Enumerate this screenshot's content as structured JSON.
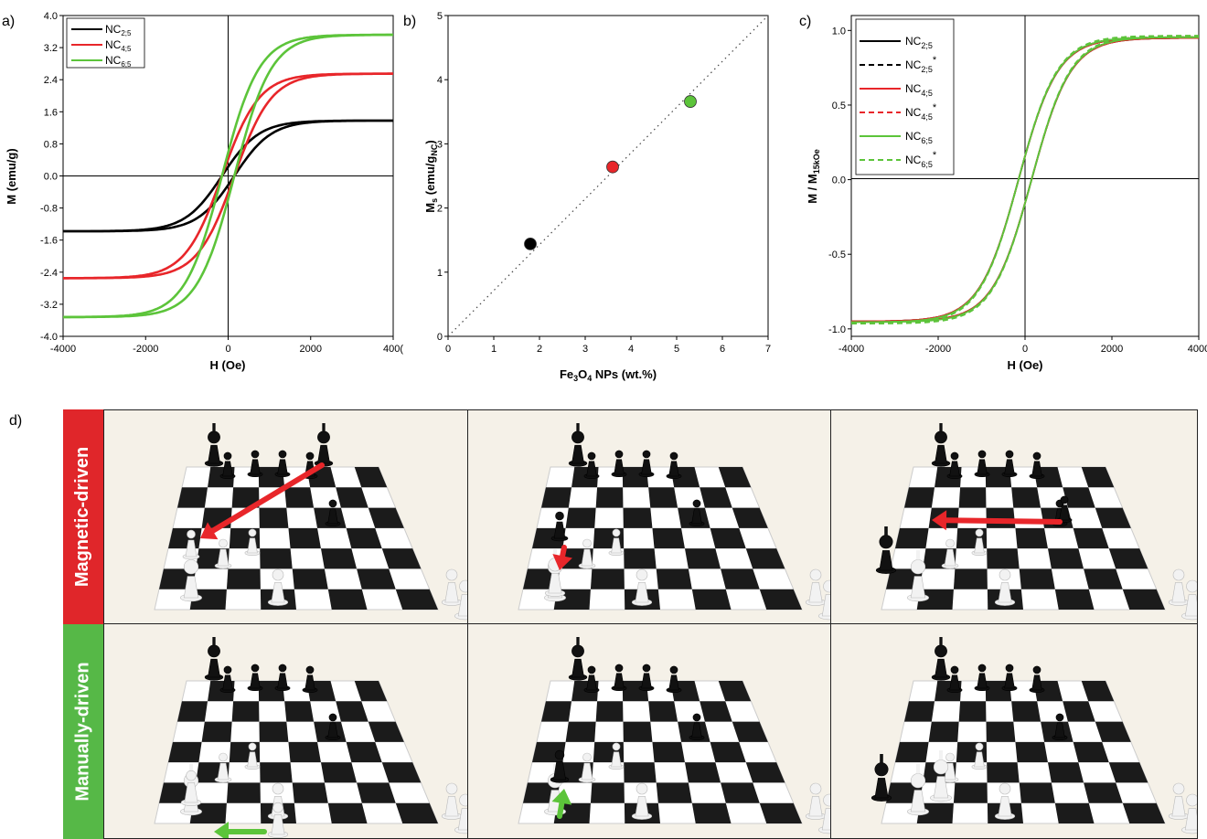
{
  "chart_data": [
    {
      "panel": "a)",
      "type": "line",
      "xlabel": "H (Oe)",
      "ylabel": "M (emu/g)",
      "xlim": [
        -4000,
        4000
      ],
      "ylim": [
        -4.0,
        4.0
      ],
      "xticks": [
        "-4000",
        "-2000",
        "0",
        "2000",
        "400("
      ],
      "yticks": [
        "4.0",
        "3.2",
        "2.4",
        "1.6",
        "0.8",
        "0.0",
        "-0.8",
        "-1.6",
        "-2.4",
        "-3.2",
        "-4.0"
      ],
      "legend": "top-left",
      "series": [
        {
          "name": "NC2;5",
          "color": "#000000",
          "ms": 1.38,
          "hc": 150
        },
        {
          "name": "NC4;5",
          "color": "#e8262a",
          "ms": 2.55,
          "hc": 150
        },
        {
          "name": "NC6;5",
          "color": "#5cc43a",
          "ms": 3.52,
          "hc": 150
        }
      ]
    },
    {
      "panel": "b)",
      "type": "scatter",
      "xlabel": "Fe3O4 NPs (wt.%)",
      "ylabel": "Ms (emu/gNC)",
      "xlim": [
        0,
        7
      ],
      "ylim": [
        0,
        5
      ],
      "xticks": [
        "0",
        "1",
        "2",
        "3",
        "4",
        "5",
        "6",
        "7"
      ],
      "yticks": [
        "0",
        "1",
        "2",
        "3",
        "4",
        "5"
      ],
      "points": [
        {
          "x": 1.8,
          "y": 1.44,
          "color": "#000000"
        },
        {
          "x": 3.6,
          "y": 2.64,
          "color": "#e8262a"
        },
        {
          "x": 5.3,
          "y": 3.66,
          "color": "#5cc43a"
        }
      ],
      "fit_line": {
        "x": [
          0,
          7
        ],
        "y": [
          0,
          5
        ],
        "style": "dotted"
      }
    },
    {
      "panel": "c)",
      "type": "line",
      "xlabel": "H (Oe)",
      "ylabel": "M / M15kOe",
      "xlim": [
        -4000,
        4000
      ],
      "ylim": [
        -1.05,
        1.1
      ],
      "xticks": [
        "-4000",
        "-2000",
        "0",
        "2000",
        "4000"
      ],
      "yticks": [
        "1.0",
        "0.5",
        "0.0",
        "-0.5",
        "-1.0"
      ],
      "legend": "top-left",
      "series": [
        {
          "name": "NC2;5",
          "color": "#000000",
          "dash": "solid",
          "ms": 0.95,
          "hc": 150
        },
        {
          "name": "NC2;5*",
          "color": "#000000",
          "dash": "dashed",
          "ms": 0.955,
          "hc": 150
        },
        {
          "name": "NC4;5",
          "color": "#e8262a",
          "dash": "solid",
          "ms": 0.95,
          "hc": 150
        },
        {
          "name": "NC4;5*",
          "color": "#e8262a",
          "dash": "dashed",
          "ms": 0.955,
          "hc": 150
        },
        {
          "name": "NC6;5",
          "color": "#5cc43a",
          "dash": "solid",
          "ms": 0.955,
          "hc": 150
        },
        {
          "name": "NC6;5*",
          "color": "#5cc43a",
          "dash": "dashed",
          "ms": 0.965,
          "hc": 150
        }
      ]
    }
  ],
  "panels": {
    "a": "a)",
    "b": "b)",
    "c": "c)",
    "d": "d)"
  },
  "legend_a": [
    {
      "base": "NC",
      "sub": "2;5",
      "sup": ""
    },
    {
      "base": "NC",
      "sub": "4;5",
      "sup": ""
    },
    {
      "base": "NC",
      "sub": "6;5",
      "sup": ""
    }
  ],
  "legend_c": [
    {
      "base": "NC",
      "sub": "2;5",
      "sup": ""
    },
    {
      "base": "NC",
      "sub": "2;5",
      "sup": "*"
    },
    {
      "base": "NC",
      "sub": "4;5",
      "sup": ""
    },
    {
      "base": "NC",
      "sub": "4;5",
      "sup": "*"
    },
    {
      "base": "NC",
      "sub": "6;5",
      "sup": ""
    },
    {
      "base": "NC",
      "sub": "6;5",
      "sup": "*"
    }
  ],
  "photos": {
    "rows": [
      {
        "label": "Magnetic-driven",
        "color": "#e0262a",
        "arrow_color": "#e8262a"
      },
      {
        "label": "Manually-driven",
        "color": "#56b847",
        "arrow_color": "#5cc43a"
      }
    ]
  }
}
